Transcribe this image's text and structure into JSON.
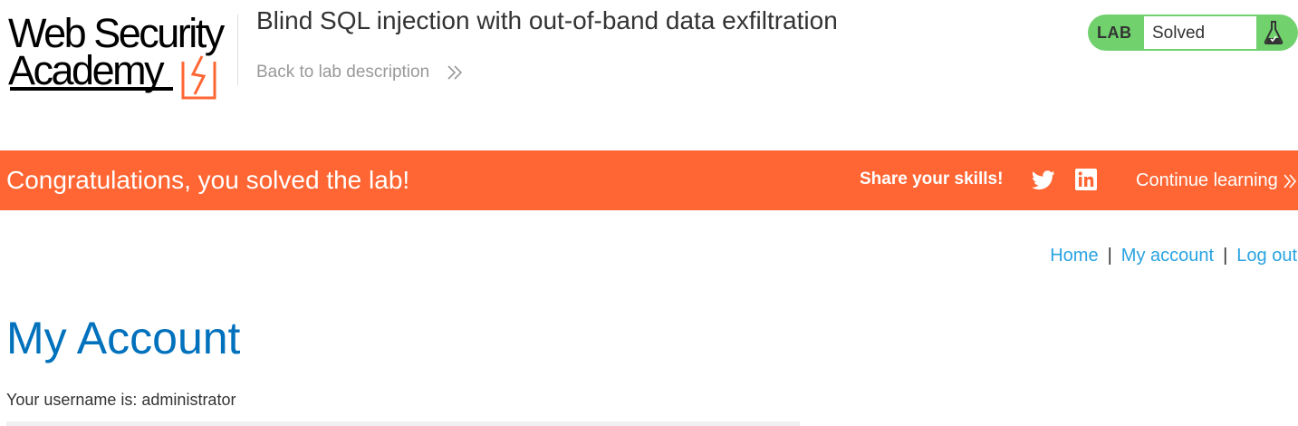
{
  "header": {
    "logo": {
      "line1": "Web Security",
      "line2": "Academy"
    },
    "lab_title": "Blind SQL injection with out-of-band data exfiltration",
    "back_link": "Back to lab description",
    "status": {
      "badge": "LAB",
      "text": "Solved",
      "icon": "flask-icon"
    }
  },
  "banner": {
    "message": "Congratulations, you solved the lab!",
    "share": "Share your skills!",
    "icons": [
      "twitter-icon",
      "linkedin-icon"
    ],
    "continue": "Continue learning"
  },
  "nav": {
    "items": [
      "Home",
      "My account",
      "Log out"
    ],
    "separator": "|"
  },
  "main": {
    "heading": "My Account",
    "username_line": "Your username is: administrator"
  },
  "colors": {
    "banner": "#ff6633",
    "status_green": "#70d16d",
    "link": "#29a3e0",
    "heading": "#0071bc"
  }
}
